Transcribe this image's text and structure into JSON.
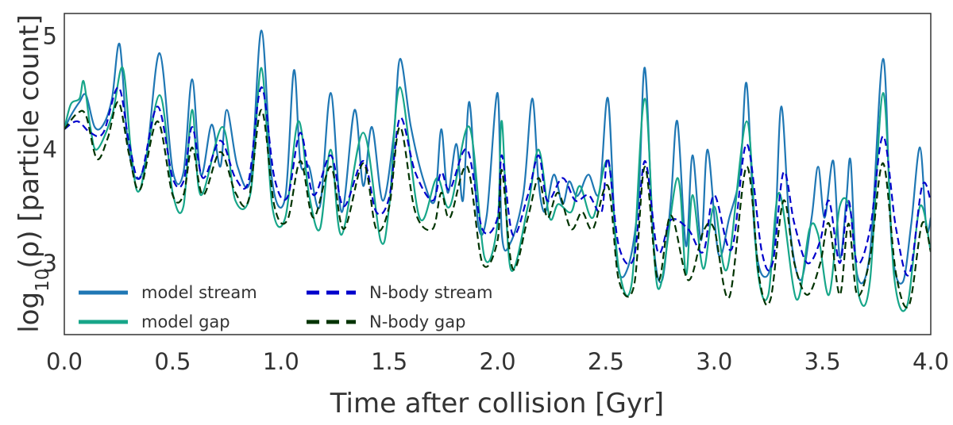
{
  "chart_data": {
    "type": "line",
    "title": "",
    "xlabel": "Time after collision [Gyr]",
    "ylabel_parts": {
      "pre": "log",
      "sub": "10",
      "post": "(ρ) [particle count]"
    },
    "xlim": [
      0.0,
      4.0
    ],
    "ylim": [
      2.37,
      5.2
    ],
    "xticks": [
      "0.0",
      "0.5",
      "1.0",
      "1.5",
      "2.0",
      "2.5",
      "3.0",
      "3.5",
      "4.0"
    ],
    "yticks": [
      "3",
      "4",
      "5"
    ],
    "grid": false,
    "legend_placement": "lower-left",
    "series": [
      {
        "name": "model stream",
        "color": "#1f77b4",
        "style": "solid",
        "x": [
          0.0,
          0.03,
          0.07,
          0.1,
          0.14,
          0.18,
          0.22,
          0.255,
          0.29,
          0.33,
          0.38,
          0.44,
          0.5,
          0.55,
          0.59,
          0.63,
          0.68,
          0.72,
          0.75,
          0.8,
          0.86,
          0.91,
          0.96,
          1.02,
          1.06,
          1.09,
          1.13,
          1.18,
          1.23,
          1.28,
          1.34,
          1.38,
          1.42,
          1.47,
          1.52,
          1.55,
          1.6,
          1.66,
          1.71,
          1.74,
          1.77,
          1.81,
          1.84,
          1.87,
          1.91,
          1.95,
          2.0,
          2.02,
          2.06,
          2.12,
          2.16,
          2.19,
          2.22,
          2.26,
          2.3,
          2.33,
          2.36,
          2.38,
          2.42,
          2.47,
          2.51,
          2.55,
          2.6,
          2.65,
          2.68,
          2.72,
          2.76,
          2.8,
          2.83,
          2.87,
          2.9,
          2.94,
          2.97,
          3.02,
          3.07,
          3.12,
          3.15,
          3.19,
          3.24,
          3.28,
          3.31,
          3.35,
          3.4,
          3.45,
          3.48,
          3.51,
          3.55,
          3.58,
          3.61,
          3.63,
          3.66,
          3.72,
          3.78,
          3.82,
          3.87,
          3.91,
          3.95,
          3.98,
          4.0
        ],
        "y": [
          4.18,
          4.3,
          4.42,
          4.48,
          4.2,
          4.22,
          4.45,
          4.93,
          4.12,
          3.75,
          3.95,
          4.85,
          3.82,
          3.8,
          4.62,
          3.78,
          4.22,
          3.85,
          4.35,
          3.85,
          3.75,
          5.05,
          3.72,
          3.58,
          4.7,
          3.88,
          3.85,
          3.5,
          4.5,
          3.45,
          4.35,
          3.68,
          4.2,
          3.55,
          4.12,
          4.8,
          4.2,
          3.72,
          3.55,
          4.18,
          3.62,
          4.05,
          3.55,
          4.42,
          3.35,
          3.42,
          4.5,
          3.25,
          3.18,
          3.62,
          4.45,
          3.7,
          3.45,
          3.78,
          3.52,
          3.72,
          3.6,
          3.62,
          3.78,
          3.62,
          4.45,
          3.05,
          2.95,
          3.55,
          4.72,
          3.18,
          2.85,
          3.55,
          4.25,
          3.15,
          3.95,
          3.2,
          4.0,
          3.08,
          3.4,
          3.8,
          4.58,
          3.18,
          2.88,
          3.25,
          4.38,
          3.3,
          2.85,
          3.4,
          3.85,
          3.4,
          3.9,
          3.05,
          3.55,
          3.9,
          2.9,
          3.1,
          4.8,
          3.15,
          2.83,
          3.35,
          4.02,
          3.3,
          3.4
        ]
      },
      {
        "name": "model gap",
        "color": "#17a689",
        "style": "solid",
        "x": [
          0.0,
          0.03,
          0.07,
          0.09,
          0.12,
          0.15,
          0.22,
          0.27,
          0.31,
          0.35,
          0.44,
          0.5,
          0.55,
          0.59,
          0.63,
          0.73,
          0.79,
          0.86,
          0.91,
          0.96,
          1.02,
          1.08,
          1.13,
          1.18,
          1.23,
          1.28,
          1.38,
          1.46,
          1.5,
          1.55,
          1.64,
          1.72,
          1.78,
          1.87,
          1.94,
          2.0,
          2.02,
          2.06,
          2.14,
          2.19,
          2.24,
          2.28,
          2.34,
          2.38,
          2.44,
          2.51,
          2.56,
          2.62,
          2.68,
          2.74,
          2.83,
          2.87,
          2.9,
          2.95,
          3.0,
          3.06,
          3.15,
          3.2,
          3.25,
          3.3,
          3.38,
          3.44,
          3.48,
          3.53,
          3.58,
          3.63,
          3.67,
          3.72,
          3.78,
          3.83,
          3.89,
          3.95,
          4.0
        ],
        "y": [
          4.18,
          4.4,
          4.45,
          4.6,
          4.2,
          4.0,
          4.3,
          4.72,
          3.95,
          3.65,
          4.48,
          3.62,
          3.5,
          4.35,
          3.6,
          4.2,
          3.55,
          3.62,
          4.72,
          3.5,
          3.4,
          4.25,
          3.6,
          3.3,
          4.0,
          3.25,
          4.15,
          3.2,
          3.5,
          4.55,
          3.4,
          3.75,
          3.5,
          4.2,
          3.05,
          3.35,
          4.25,
          2.95,
          3.5,
          4.0,
          3.4,
          3.52,
          3.45,
          3.68,
          3.4,
          3.9,
          2.95,
          2.83,
          4.45,
          2.78,
          3.75,
          2.9,
          3.6,
          2.95,
          3.5,
          2.95,
          4.25,
          2.95,
          2.72,
          3.62,
          2.68,
          3.3,
          3.25,
          2.72,
          3.5,
          3.45,
          2.7,
          2.85,
          4.5,
          2.9,
          2.62,
          3.5,
          3.1
        ]
      },
      {
        "name": "N-body stream",
        "color": "#0000cc",
        "style": "dashed",
        "x": [
          0.0,
          0.06,
          0.12,
          0.18,
          0.25,
          0.3,
          0.35,
          0.43,
          0.5,
          0.55,
          0.59,
          0.64,
          0.72,
          0.79,
          0.85,
          0.91,
          0.97,
          1.03,
          1.09,
          1.15,
          1.23,
          1.29,
          1.38,
          1.44,
          1.5,
          1.55,
          1.62,
          1.7,
          1.74,
          1.78,
          1.86,
          1.93,
          2.0,
          2.02,
          2.07,
          2.14,
          2.19,
          2.23,
          2.3,
          2.36,
          2.42,
          2.48,
          2.51,
          2.56,
          2.63,
          2.68,
          2.74,
          2.8,
          2.88,
          2.95,
          3.0,
          3.08,
          3.15,
          3.22,
          3.27,
          3.32,
          3.37,
          3.43,
          3.49,
          3.53,
          3.58,
          3.62,
          3.66,
          3.72,
          3.78,
          3.84,
          3.9,
          3.96,
          4.0
        ],
        "y": [
          4.18,
          4.25,
          4.15,
          4.15,
          4.55,
          4.05,
          3.75,
          4.38,
          3.75,
          3.72,
          4.2,
          3.75,
          4.08,
          3.75,
          3.72,
          4.55,
          3.75,
          3.58,
          4.15,
          3.6,
          3.95,
          3.5,
          3.9,
          3.45,
          3.58,
          4.28,
          3.8,
          3.55,
          3.8,
          3.65,
          4.0,
          3.3,
          3.4,
          3.95,
          3.25,
          3.6,
          3.95,
          3.55,
          3.75,
          3.55,
          3.6,
          3.45,
          3.92,
          3.15,
          3.05,
          3.9,
          3.1,
          3.38,
          3.3,
          3.1,
          3.6,
          3.12,
          4.05,
          3.1,
          3.0,
          3.8,
          3.35,
          3.0,
          3.2,
          3.55,
          3.0,
          3.55,
          3.0,
          3.3,
          4.12,
          3.3,
          2.9,
          3.68,
          3.55
        ]
      },
      {
        "name": "N-body gap",
        "color": "#003300",
        "style": "dashed",
        "x": [
          0.0,
          0.06,
          0.1,
          0.15,
          0.2,
          0.25,
          0.3,
          0.35,
          0.43,
          0.5,
          0.55,
          0.59,
          0.64,
          0.72,
          0.79,
          0.85,
          0.91,
          0.97,
          1.03,
          1.09,
          1.15,
          1.23,
          1.29,
          1.38,
          1.44,
          1.5,
          1.55,
          1.62,
          1.7,
          1.74,
          1.78,
          1.86,
          1.93,
          2.0,
          2.02,
          2.07,
          2.14,
          2.19,
          2.23,
          2.28,
          2.34,
          2.39,
          2.44,
          2.51,
          2.56,
          2.63,
          2.68,
          2.74,
          2.8,
          2.88,
          2.95,
          3.0,
          3.07,
          3.15,
          3.21,
          3.26,
          3.32,
          3.37,
          3.43,
          3.49,
          3.53,
          3.58,
          3.62,
          3.66,
          3.72,
          3.78,
          3.84,
          3.9,
          3.96,
          4.0
        ],
        "y": [
          4.18,
          4.32,
          4.3,
          3.92,
          4.1,
          4.42,
          3.95,
          3.65,
          4.25,
          3.6,
          3.6,
          4.02,
          3.6,
          3.98,
          3.62,
          3.55,
          4.35,
          3.5,
          3.38,
          3.9,
          3.4,
          3.85,
          3.3,
          3.88,
          3.3,
          3.5,
          4.2,
          3.45,
          3.3,
          3.62,
          3.4,
          3.85,
          3.0,
          3.2,
          3.82,
          2.95,
          3.4,
          3.75,
          3.4,
          3.62,
          3.3,
          3.45,
          3.3,
          3.68,
          2.85,
          2.8,
          3.85,
          2.85,
          3.42,
          2.85,
          3.28,
          3.3,
          2.7,
          3.85,
          2.85,
          2.68,
          3.55,
          3.0,
          2.72,
          3.0,
          3.35,
          2.72,
          3.35,
          2.72,
          3.05,
          3.88,
          2.9,
          2.63,
          3.35,
          3.1
        ]
      }
    ]
  }
}
